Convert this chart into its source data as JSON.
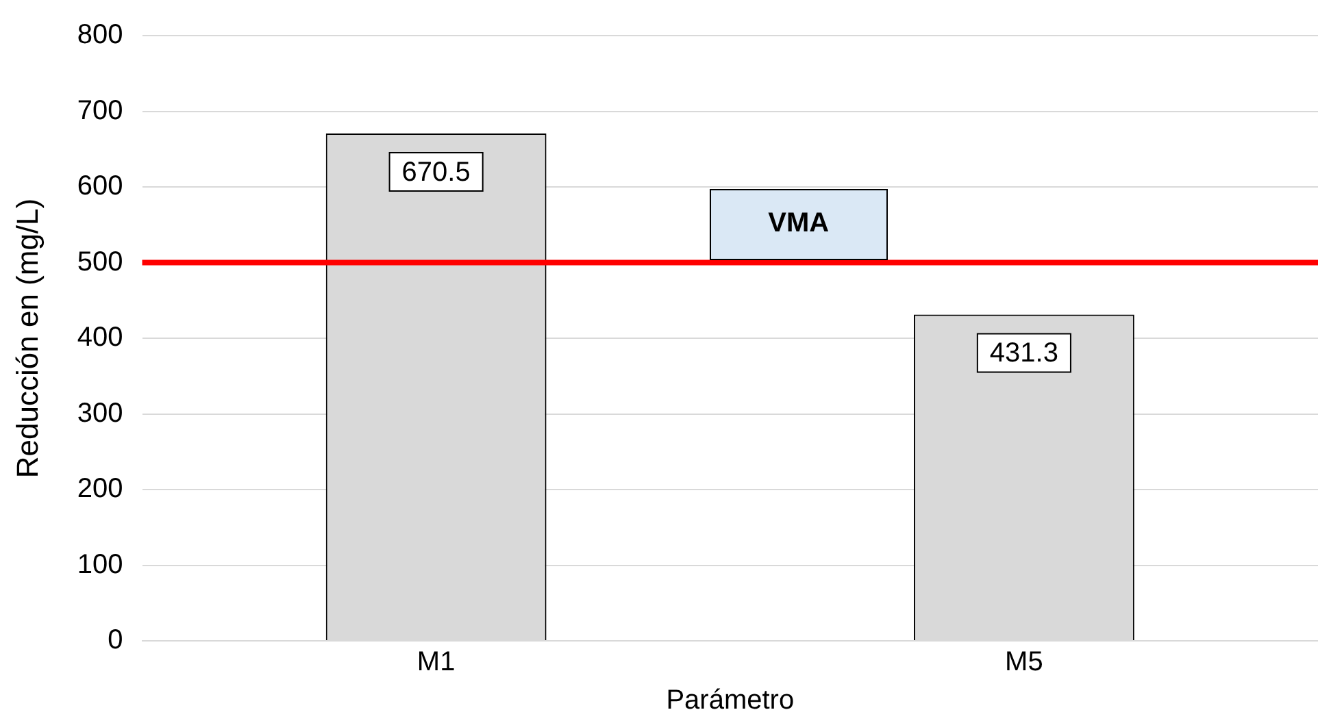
{
  "chart_data": {
    "type": "bar",
    "xlabel": "Parámetro",
    "ylabel": "Reducción en (mg/L)",
    "categories": [
      "M1",
      "M5"
    ],
    "values": [
      670.5,
      431.3
    ],
    "color": "#d9d9d9",
    "ylim": [
      0,
      800
    ],
    "yticks": [
      0,
      100,
      200,
      300,
      400,
      500,
      600,
      700,
      800
    ],
    "grid": "y",
    "data_labels": true,
    "ref_lines": [
      {
        "axis": "y",
        "value": 500,
        "label": "VMA",
        "color": "#ff0000"
      }
    ]
  }
}
